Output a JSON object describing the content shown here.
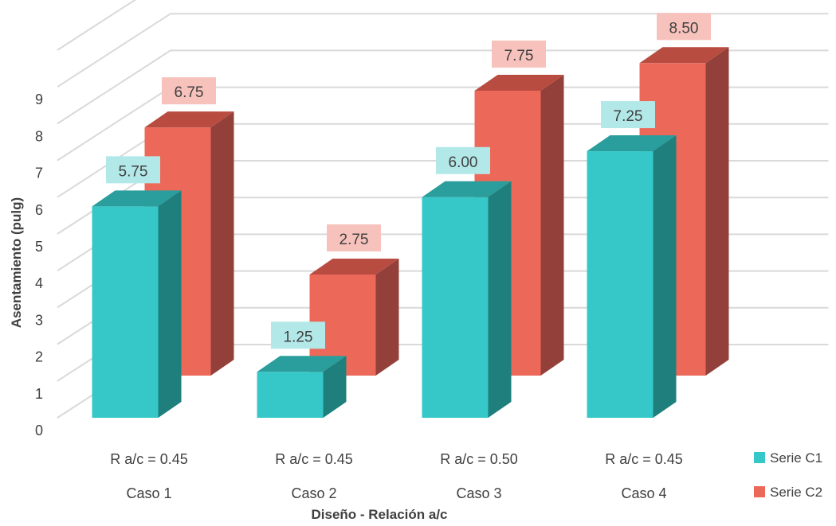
{
  "chart_data": {
    "type": "bar",
    "style": "3d-clustered-column",
    "title": "",
    "xlabel": "Diseño - Relación a/c",
    "ylabel": "Asentamiento (pulg)",
    "ylim": [
      0,
      9
    ],
    "yticks": [
      0,
      1,
      2,
      3,
      4,
      5,
      6,
      7,
      8,
      9
    ],
    "grid": true,
    "legend_position": "right",
    "categories": [
      "Caso 1",
      "Caso 2",
      "Caso 3",
      "Caso 4"
    ],
    "category_sublabels": [
      "R a/c = 0.45",
      "R a/c = 0.45",
      "R a/c = 0.50",
      "R a/c = 0.45"
    ],
    "series": [
      {
        "name": "Serie C1",
        "values": [
          5.75,
          1.25,
          6.0,
          7.25
        ],
        "labels": [
          "5.75",
          "1.25",
          "6.00",
          "7.25"
        ],
        "color": "#36C8C8",
        "side_color": "#1F7F7D",
        "top_color": "#2A9E9C",
        "label_bg": "#B3E8E8"
      },
      {
        "name": "Serie C2",
        "values": [
          6.75,
          2.75,
          7.75,
          8.5
        ],
        "labels": [
          "6.75",
          "2.75",
          "7.75",
          "8.50"
        ],
        "color": "#EC6959",
        "side_color": "#94403A",
        "top_color": "#B84C41",
        "label_bg": "#F7C2BC"
      }
    ]
  }
}
